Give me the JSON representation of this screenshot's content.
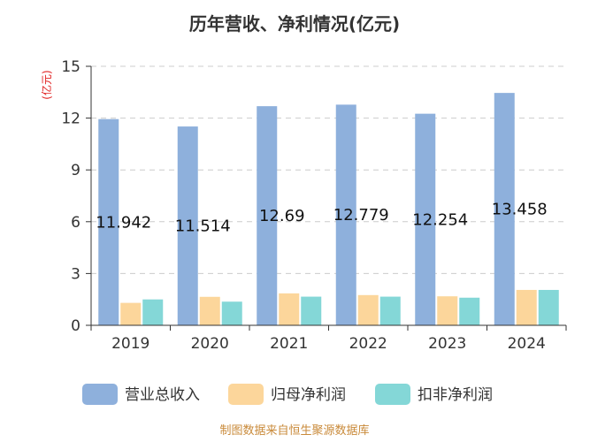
{
  "chart_data": {
    "type": "bar",
    "title": "历年营收、净利情况(亿元)",
    "ylabel": "(亿元)",
    "ylim": [
      0,
      15
    ],
    "yticks": [
      0,
      3,
      6,
      9,
      12,
      15
    ],
    "categories": [
      "2019",
      "2020",
      "2021",
      "2022",
      "2023",
      "2024"
    ],
    "series": [
      {
        "name": "营业总收入",
        "values": [
          11.942,
          11.514,
          12.69,
          12.779,
          12.254,
          13.458
        ],
        "color": "#8eb0dc"
      },
      {
        "name": "归母净利润",
        "values": [
          1.3,
          1.65,
          1.85,
          1.75,
          1.68,
          2.05
        ],
        "color": "#fcd69b"
      },
      {
        "name": "扣非净利润",
        "values": [
          1.5,
          1.37,
          1.66,
          1.66,
          1.6,
          2.05
        ],
        "color": "#84d7d7"
      }
    ],
    "data_labels": [
      "11.942",
      "11.514",
      "12.69",
      "12.779",
      "12.254",
      "13.458"
    ],
    "grid": true,
    "legend_position": "bottom",
    "axis_color": "#333333",
    "ylabel_color": "#e02020"
  },
  "footer": {
    "source": "制图数据来自恒生聚源数据库",
    "source_color": "#c98a3a"
  }
}
